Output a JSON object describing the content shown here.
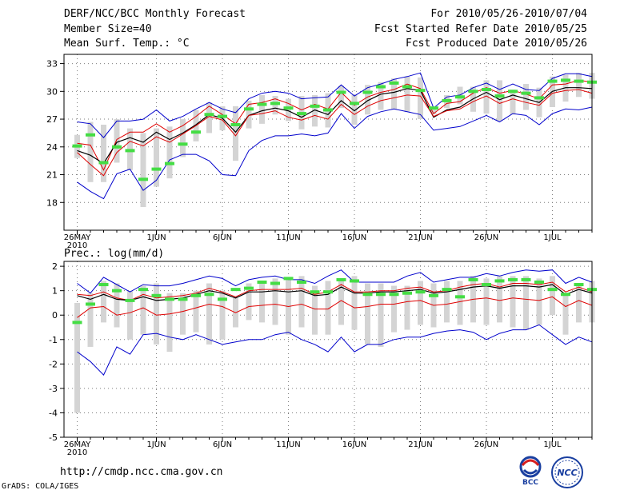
{
  "header": {
    "title": "DERF/NCC/BCC Monthly Forecast",
    "member_size": "Member Size=40",
    "variable1": "Mean Surf. Temp.: °C",
    "period": "For 2010/05/26-2010/07/04",
    "fcst_started": "Fcst Started Refer Date 2010/05/25",
    "fcst_produced": "Fcst Produced Date 2010/05/26"
  },
  "panel2_label": "Prec.: log(mm/d)",
  "footer": {
    "url": "http://cmdp.ncc.cma.gov.cn",
    "grads": "GrADS: COLA/IGES"
  },
  "logos": {
    "bcc_text": "BCC",
    "ncc_text": "NCC"
  },
  "colors": {
    "max_min": "#0000cc",
    "member_spread": "#e00000",
    "ensemble_mean": "#000000",
    "observed": "#44dd44",
    "boxes": "#d4d4d4",
    "grid": "#808080"
  },
  "chart_data": [
    {
      "type": "line",
      "title": "Mean Surf. Temp.: °C",
      "ylim": [
        15,
        34
      ],
      "yticks": [
        18,
        21,
        24,
        27,
        30,
        33
      ],
      "xlim": [
        25,
        65
      ],
      "xtick_positions": [
        26,
        32,
        37,
        42,
        47,
        52,
        57,
        62
      ],
      "xtick_labels": [
        "26MAY",
        "1JUN",
        "6JUN",
        "11JUN",
        "16JUN",
        "21JUN",
        "26JUN",
        "1JUL"
      ],
      "xtick_sublabel": "2010",
      "x": [
        26,
        27,
        28,
        29,
        30,
        31,
        32,
        33,
        34,
        35,
        36,
        37,
        38,
        39,
        40,
        41,
        42,
        43,
        44,
        45,
        46,
        47,
        48,
        49,
        50,
        51,
        52,
        53,
        54,
        55,
        56,
        57,
        58,
        59,
        60,
        61,
        62,
        63,
        64,
        65
      ],
      "box_low": [
        22.8,
        20.2,
        20.2,
        22.3,
        21.5,
        17.5,
        19.7,
        20.6,
        22.9,
        24.6,
        25.5,
        25.8,
        22.5,
        26.0,
        26.5,
        27.5,
        26.8,
        25.9,
        26.2,
        26.1,
        28.2,
        26.4,
        27.5,
        28.0,
        28.1,
        27.8,
        27.0,
        27.5,
        28.2,
        28.6,
        27.8,
        27.6,
        26.8,
        27.5,
        28.0,
        27.2,
        28.3,
        28.9,
        29.4,
        29.2
      ],
      "box_high": [
        25.3,
        26.7,
        26.4,
        27.0,
        26.0,
        25.5,
        26.0,
        26.2,
        27.0,
        28.0,
        28.8,
        28.4,
        28.4,
        29.0,
        29.6,
        29.5,
        29.2,
        29.5,
        29.6,
        29.8,
        30.6,
        29.6,
        30.7,
        31.0,
        31.4,
        31.6,
        31.5,
        28.2,
        29.6,
        30.5,
        30.5,
        31.2,
        31.2,
        30.2,
        30.8,
        30.4,
        31.6,
        31.8,
        32.0,
        32.0
      ],
      "series": [
        {
          "name": "obs",
          "values": [
            24.1,
            25.3,
            22.3,
            24.0,
            23.6,
            20.5,
            21.6,
            22.2,
            24.3,
            25.6,
            27.5,
            27.3,
            26.4,
            28.1,
            28.6,
            28.7,
            28.2,
            27.6,
            28.4,
            28.0,
            29.9,
            28.7,
            29.9,
            30.5,
            30.9,
            30.5,
            30.1,
            28.2,
            29.0,
            29.4,
            30.0,
            30.2,
            29.5,
            30.0,
            29.8,
            29.3,
            31.1,
            31.2,
            31.1,
            31.0
          ]
        },
        {
          "name": "max",
          "values": [
            26.7,
            26.5,
            25.0,
            26.8,
            26.8,
            27.0,
            28.0,
            26.8,
            27.3,
            28.1,
            28.8,
            28.1,
            27.7,
            29.2,
            29.8,
            30.0,
            29.8,
            29.2,
            29.3,
            29.4,
            30.7,
            29.5,
            30.4,
            30.8,
            31.3,
            31.6,
            32.0,
            28.2,
            29.4,
            29.6,
            30.4,
            30.9,
            30.2,
            30.8,
            30.2,
            30.1,
            31.4,
            31.9,
            31.9,
            31.6
          ]
        },
        {
          "name": "upper",
          "values": [
            24.4,
            24.2,
            21.5,
            24.8,
            25.6,
            25.6,
            26.5,
            25.6,
            26.3,
            27.3,
            28.4,
            27.5,
            26.5,
            28.6,
            28.8,
            29.2,
            28.7,
            28.0,
            28.6,
            28.1,
            29.9,
            28.5,
            29.4,
            29.9,
            30.2,
            30.8,
            30.3,
            27.6,
            28.7,
            28.9,
            29.8,
            30.4,
            29.8,
            30.1,
            29.7,
            29.2,
            30.7,
            30.8,
            31.2,
            31.0
          ]
        },
        {
          "name": "mean",
          "values": [
            23.6,
            23.1,
            22.2,
            24.5,
            25.0,
            24.5,
            25.6,
            24.8,
            25.5,
            26.4,
            27.5,
            27.1,
            25.6,
            27.4,
            27.9,
            28.2,
            27.9,
            27.2,
            28.0,
            27.5,
            29.0,
            27.9,
            29.0,
            29.7,
            29.9,
            30.3,
            30.1,
            27.2,
            28.0,
            28.3,
            29.2,
            29.9,
            29.1,
            29.6,
            29.2,
            28.8,
            30.0,
            30.4,
            30.4,
            30.3
          ]
        },
        {
          "name": "lower",
          "values": [
            23.4,
            22.1,
            20.9,
            23.4,
            24.6,
            24.1,
            25.1,
            24.5,
            25.4,
            26.3,
            27.3,
            26.9,
            25.2,
            27.4,
            27.6,
            27.9,
            27.2,
            26.9,
            27.4,
            27.0,
            28.6,
            27.5,
            28.4,
            29.0,
            29.3,
            29.6,
            29.5,
            27.3,
            27.9,
            28.1,
            28.9,
            29.5,
            28.7,
            29.2,
            28.8,
            28.5,
            29.8,
            30.1,
            30.2,
            29.8
          ]
        },
        {
          "name": "min",
          "values": [
            20.2,
            19.2,
            18.4,
            21.1,
            21.6,
            19.3,
            20.4,
            22.6,
            23.2,
            23.2,
            22.5,
            21.0,
            20.9,
            23.6,
            24.7,
            25.2,
            25.2,
            25.4,
            25.2,
            25.5,
            27.6,
            26.0,
            27.3,
            27.8,
            28.1,
            27.8,
            27.5,
            25.8,
            26.0,
            26.2,
            26.8,
            27.4,
            26.7,
            27.6,
            27.4,
            26.4,
            27.6,
            28.1,
            28.0,
            28.3
          ]
        }
      ]
    },
    {
      "type": "line",
      "title": "Prec.: log(mm/d)",
      "ylim": [
        -5,
        2.2
      ],
      "yticks": [
        -5,
        -4,
        -3,
        -2,
        -1,
        0,
        1,
        2
      ],
      "xlim": [
        25,
        65
      ],
      "xtick_positions": [
        26,
        32,
        37,
        42,
        47,
        52,
        57,
        62
      ],
      "xtick_labels": [
        "26MAY",
        "1JUN",
        "6JUN",
        "11JUN",
        "16JUN",
        "21JUN",
        "26JUN",
        "1JUL"
      ],
      "xtick_sublabel": "2010",
      "x": [
        26,
        27,
        28,
        29,
        30,
        31,
        32,
        33,
        34,
        35,
        36,
        37,
        38,
        39,
        40,
        41,
        42,
        43,
        44,
        45,
        46,
        47,
        48,
        49,
        50,
        51,
        52,
        53,
        54,
        55,
        56,
        57,
        58,
        59,
        60,
        61,
        62,
        63,
        64,
        65
      ],
      "box_low": [
        -4.0,
        -1.3,
        -0.3,
        -0.5,
        -1.0,
        -0.8,
        -1.2,
        -1.5,
        -0.8,
        -0.7,
        -1.2,
        -1.0,
        -0.5,
        -0.2,
        -0.3,
        -0.4,
        -0.8,
        -0.5,
        -0.8,
        -0.8,
        -0.4,
        -0.6,
        -1.2,
        -1.3,
        -0.7,
        -0.6,
        -0.4,
        -0.5,
        -0.3,
        -0.4,
        -0.3,
        -0.4,
        -0.3,
        -0.5,
        -0.6,
        -0.4,
        0.0,
        -0.8,
        -0.3,
        -0.3
      ],
      "box_high": [
        0.5,
        0.9,
        1.4,
        1.3,
        1.0,
        1.2,
        1.3,
        0.9,
        0.9,
        1.0,
        1.3,
        1.0,
        0.7,
        1.3,
        1.3,
        1.5,
        1.5,
        1.6,
        1.2,
        1.4,
        1.5,
        1.6,
        1.3,
        1.3,
        1.2,
        1.2,
        1.4,
        1.3,
        1.4,
        1.4,
        1.6,
        1.5,
        1.6,
        1.6,
        1.6,
        1.5,
        1.6,
        0.9,
        1.2,
        1.4
      ],
      "series": [
        {
          "name": "obs",
          "values": [
            -0.3,
            0.45,
            1.25,
            1.0,
            0.6,
            1.05,
            0.8,
            0.65,
            0.65,
            0.8,
            0.85,
            0.65,
            1.05,
            1.1,
            1.35,
            1.3,
            1.5,
            1.35,
            0.95,
            0.95,
            1.45,
            1.4,
            0.85,
            0.85,
            0.85,
            0.9,
            0.95,
            0.8,
            1.05,
            0.75,
            1.45,
            1.25,
            1.4,
            1.45,
            1.45,
            1.35,
            1.05,
            0.85,
            1.25,
            1.05
          ]
        },
        {
          "name": "max",
          "values": [
            1.3,
            0.9,
            1.55,
            1.25,
            0.95,
            1.25,
            1.2,
            1.2,
            1.3,
            1.45,
            1.6,
            1.5,
            1.2,
            1.45,
            1.55,
            1.6,
            1.45,
            1.45,
            1.3,
            1.6,
            1.85,
            1.35,
            1.35,
            1.35,
            1.35,
            1.6,
            1.75,
            1.35,
            1.45,
            1.55,
            1.55,
            1.7,
            1.6,
            1.75,
            1.85,
            1.8,
            1.85,
            1.3,
            1.55,
            1.35
          ]
        },
        {
          "name": "upper",
          "values": [
            0.85,
            0.8,
            0.95,
            0.7,
            0.6,
            0.85,
            0.7,
            0.75,
            0.8,
            0.9,
            1.1,
            0.95,
            0.75,
            1.0,
            1.05,
            1.05,
            1.05,
            1.1,
            0.85,
            0.95,
            1.25,
            0.95,
            0.95,
            1.0,
            1.0,
            1.1,
            1.15,
            0.95,
            1.0,
            1.15,
            1.25,
            1.3,
            1.15,
            1.3,
            1.3,
            1.25,
            1.35,
            0.95,
            1.15,
            0.95
          ]
        },
        {
          "name": "mean",
          "values": [
            0.8,
            0.65,
            0.85,
            0.65,
            0.6,
            0.75,
            0.6,
            0.65,
            0.7,
            0.85,
            1.0,
            0.9,
            0.7,
            0.95,
            0.95,
            1.0,
            0.95,
            1.0,
            0.8,
            0.85,
            1.15,
            0.9,
            0.9,
            0.95,
            0.95,
            1.0,
            1.05,
            0.9,
            0.95,
            1.05,
            1.15,
            1.2,
            1.1,
            1.2,
            1.2,
            1.15,
            1.25,
            0.85,
            1.05,
            0.9
          ]
        },
        {
          "name": "lower",
          "values": [
            -0.1,
            0.3,
            0.35,
            0.0,
            0.1,
            0.3,
            0.0,
            0.05,
            0.15,
            0.3,
            0.45,
            0.35,
            0.1,
            0.35,
            0.4,
            0.45,
            0.35,
            0.45,
            0.25,
            0.25,
            0.6,
            0.3,
            0.35,
            0.45,
            0.45,
            0.55,
            0.6,
            0.4,
            0.45,
            0.55,
            0.65,
            0.7,
            0.6,
            0.7,
            0.65,
            0.6,
            0.75,
            0.35,
            0.6,
            0.4
          ]
        },
        {
          "name": "min",
          "values": [
            -1.5,
            -1.9,
            -2.45,
            -1.3,
            -1.6,
            -0.8,
            -0.75,
            -0.9,
            -1.0,
            -0.8,
            -1.0,
            -1.2,
            -1.1,
            -1.0,
            -1.0,
            -0.8,
            -0.7,
            -1.0,
            -1.2,
            -1.5,
            -0.9,
            -1.5,
            -1.2,
            -1.2,
            -1.0,
            -0.9,
            -0.9,
            -0.75,
            -0.65,
            -0.6,
            -0.7,
            -1.0,
            -0.75,
            -0.6,
            -0.6,
            -0.4,
            -0.8,
            -1.2,
            -0.9,
            -1.1
          ]
        }
      ]
    }
  ]
}
